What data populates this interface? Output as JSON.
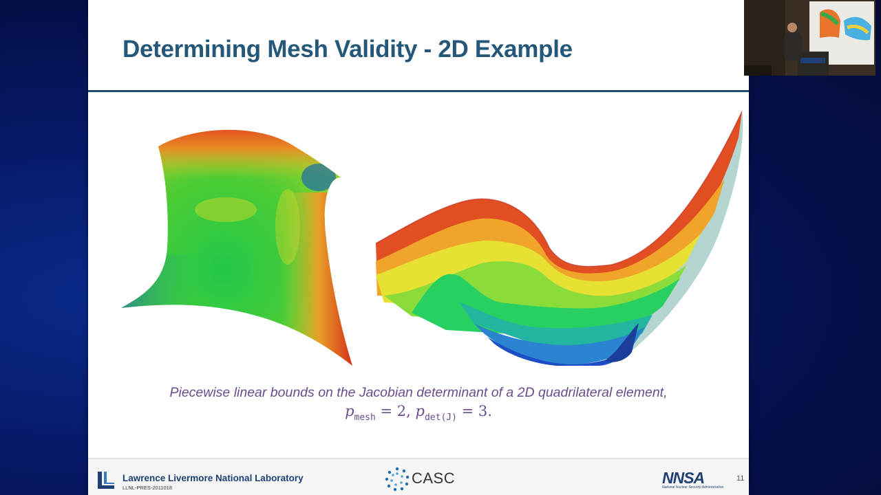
{
  "slide": {
    "title": "Determining Mesh Validity - 2D Example",
    "caption": "Piecewise linear bounds on the Jacobian determinant of a 2D quadrilateral element,",
    "formula": {
      "p1": "p",
      "sub1": "mesh",
      "mid": " = 2, ",
      "p2": "p",
      "sub2": "det(J)",
      "end": " = 3."
    }
  },
  "footer": {
    "lab_name": "Lawrence Livermore National Laboratory",
    "doc_code": "LLNL-PRES-2011018",
    "casc": "CASC",
    "nnsa": "NNSA",
    "nnsa_subtitle": "National Nuclear Security Administration",
    "page_number": "11"
  },
  "colors": {
    "title": "#245778",
    "caption": "#6a4c8c",
    "rule": "#1f4e6e",
    "footer_brand": "#1d3f73",
    "background": "#061a6a"
  },
  "icons": {
    "llnl": "llnl-logo-icon",
    "casc": "casc-logo-icon",
    "nnsa": "nnsa-logo-icon"
  }
}
